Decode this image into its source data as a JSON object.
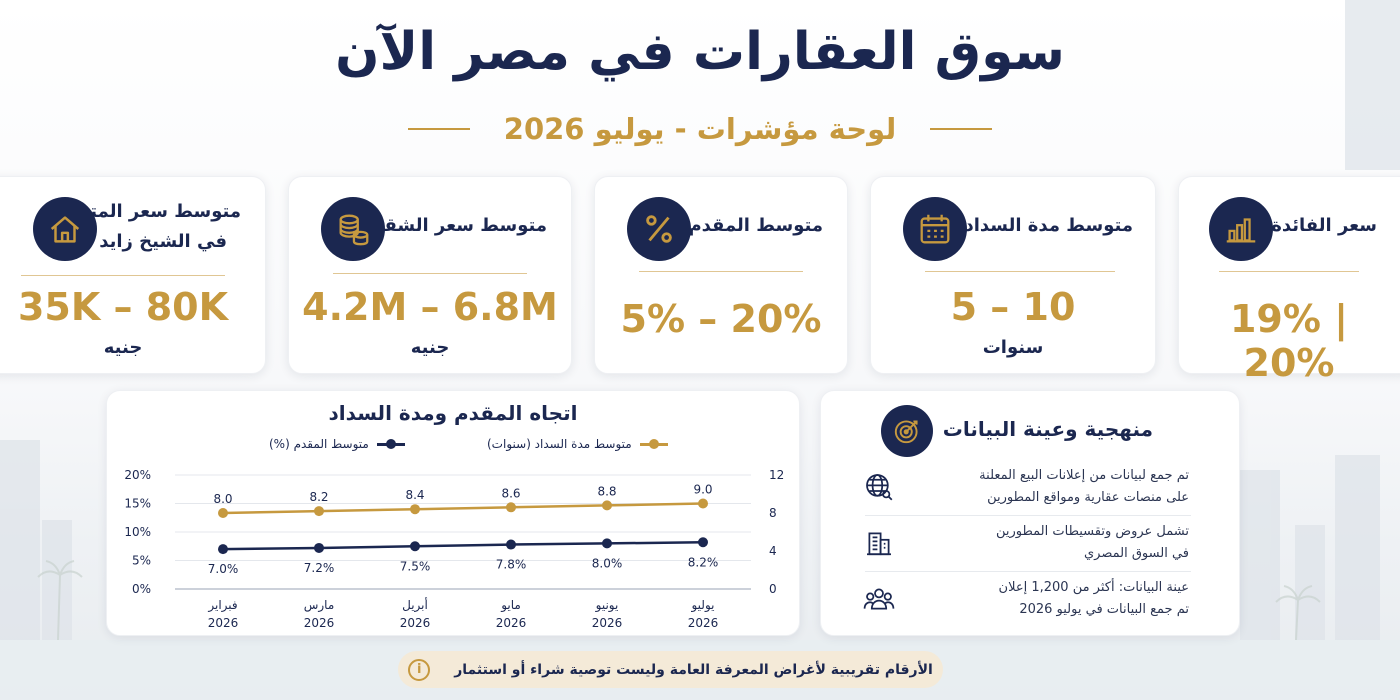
{
  "title": "سوق العقارات في مصر الآن",
  "subtitle": "لوحة مؤشرات - يوليو 2026",
  "cards": [
    {
      "label": "سعر الفائدة",
      "value": "19% | 20%",
      "unit": "",
      "icon": "bar-chart-icon"
    },
    {
      "label": "متوسط مدة السداد",
      "value": "5 – 10",
      "unit": "سنوات",
      "icon": "calendar-icon"
    },
    {
      "label": "متوسط المقدم",
      "value": "5% – 20%",
      "unit": "",
      "icon": "percent-icon"
    },
    {
      "label": "متوسط سعر الشقة",
      "value": "4.2M – 6.8M",
      "unit": "جنيه",
      "icon": "coins-icon"
    },
    {
      "label_line1": "متوسط سعر المتر",
      "label_line2": "في الشيخ زايد",
      "value": "35K – 80K",
      "unit": "جنيه",
      "icon": "house-icon"
    }
  ],
  "chart_data": {
    "type": "line",
    "title": "اتجاه المقدم ومدة السداد",
    "categories": [
      [
        "فبراير",
        "2026"
      ],
      [
        "مارس",
        "2026"
      ],
      [
        "أبريل",
        "2026"
      ],
      [
        "مايو",
        "2026"
      ],
      [
        "يونيو",
        "2026"
      ],
      [
        "يوليو",
        "2026"
      ]
    ],
    "series": [
      {
        "name": "متوسط المقدم (%)",
        "axis": "left",
        "color": "#1b2750",
        "values": [
          7.0,
          7.2,
          7.5,
          7.8,
          8.0,
          8.2
        ],
        "labels": [
          "7.0%",
          "7.2%",
          "7.5%",
          "7.8%",
          "8.0%",
          "8.2%"
        ]
      },
      {
        "name": "متوسط مدة السداد (سنوات)",
        "axis": "right",
        "color": "#c6993f",
        "values": [
          8.0,
          8.2,
          8.4,
          8.6,
          8.8,
          9.0
        ],
        "labels": [
          "8.0",
          "8.2",
          "8.4",
          "8.6",
          "8.8",
          "9.0"
        ]
      }
    ],
    "y_left": {
      "range": [
        0,
        20
      ],
      "ticks": [
        "0%",
        "5%",
        "10%",
        "15%",
        "20%"
      ]
    },
    "y_right": {
      "range": [
        0,
        12
      ],
      "ticks": [
        "0",
        "4",
        "8",
        "12"
      ]
    },
    "grid": true,
    "legend_position": "top"
  },
  "methodology": {
    "title": "منهجية وعينة البيانات",
    "items": [
      {
        "line1": "تم جمع  لبيانات من إعلانات البيع المعلنة",
        "line2": "على منصات عقارية ومواقع المطورين",
        "icon": "globe-search-icon"
      },
      {
        "line1": "تشمل عروض وتقسيطات المطورين",
        "line2": "في السوق المصري",
        "icon": "buildings-icon"
      },
      {
        "line1": "عينة البيانات: أكثر من 1,200 إعلان",
        "line2": "تم جمع البيانات في يوليو 2026",
        "icon": "users-icon"
      }
    ]
  },
  "disclaimer": "الأرقام تقريبية لأغراض المعرفة العامة وليست توصية شراء أو استثمار",
  "colors": {
    "navy": "#1b2750",
    "gold": "#c6993f"
  }
}
